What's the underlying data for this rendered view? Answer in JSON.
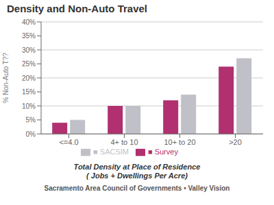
{
  "chart_data": {
    "type": "bar",
    "title": "Density and Non-Auto Travel",
    "categories": [
      "<=4.0",
      "4+ to 10",
      "10+ to 20",
      ">20"
    ],
    "series": [
      {
        "name": "■ Survey",
        "color": "#b03070",
        "values": [
          4,
          10,
          12,
          24
        ]
      },
      {
        "name": "■ SACSIM",
        "color": "#c0c0c8",
        "values": [
          5,
          10,
          14,
          27
        ]
      }
    ],
    "ylabel": "% Non-Auto T??",
    "xlabel": "Total Density at Place of Residence\n( Jobs + Dwellings Per Acre)",
    "ylim": [
      0,
      40
    ],
    "yticks": [
      {
        "value": 0,
        "label": "0%"
      },
      {
        "value": 5,
        "label": "5%"
      },
      {
        "value": 10,
        "label": "10%"
      },
      {
        "value": 15,
        "label": "15%"
      },
      {
        "value": 20,
        "label": "20%"
      },
      {
        "value": 25,
        "label": "25%"
      },
      {
        "value": 30,
        "label": "30%"
      },
      {
        "value": 35,
        "label": "35%"
      },
      {
        "value": 40,
        "label": "40%"
      }
    ],
    "grid": true,
    "legend": "bottom",
    "annotations": [
      "Sacramento Area Council of Governments  •  Valley Vision"
    ]
  }
}
